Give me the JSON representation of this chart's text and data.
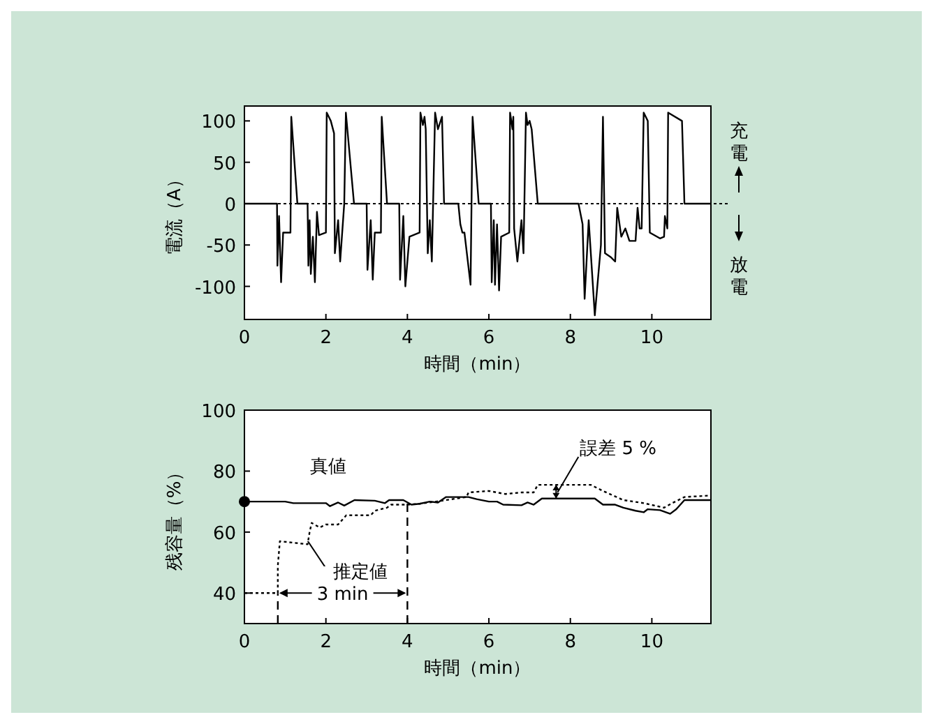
{
  "chart_data": [
    {
      "type": "line",
      "ylabel": "電流（A）",
      "xlabel": "時間（min）",
      "xlim": [
        0,
        11.45
      ],
      "ylim": [
        -140,
        118
      ],
      "xticks": [
        0,
        2,
        4,
        6,
        8,
        10
      ],
      "yticks": [
        -100,
        -50,
        0,
        50,
        100
      ],
      "grid": false,
      "ref_lines": [
        {
          "axis": "y",
          "value": 0,
          "line_style": "dotted",
          "color": "#000000"
        }
      ],
      "annotations": [
        "充電",
        "放電"
      ],
      "series": [
        {
          "color": "#000000",
          "line_style": "solid",
          "x": [
            0,
            0.8,
            0.81,
            0.85,
            0.9,
            0.95,
            1.13,
            1.15,
            1.3,
            1.55,
            1.57,
            1.6,
            1.63,
            1.68,
            1.73,
            1.78,
            1.83,
            2.0,
            2.02,
            2.12,
            2.2,
            2.22,
            2.3,
            2.35,
            2.45,
            2.49,
            2.69,
            3.0,
            3.02,
            3.1,
            3.15,
            3.2,
            3.35,
            3.37,
            3.5,
            3.8,
            3.82,
            3.9,
            3.95,
            4.05,
            4.3,
            4.32,
            4.38,
            4.42,
            4.45,
            4.5,
            4.55,
            4.6,
            4.68,
            4.75,
            4.85,
            4.9,
            5.25,
            5.3,
            5.35,
            5.4,
            5.55,
            5.6,
            5.75,
            6.05,
            6.07,
            6.12,
            6.15,
            6.2,
            6.25,
            6.3,
            6.5,
            6.52,
            6.58,
            6.6,
            6.62,
            6.7,
            6.8,
            6.85,
            6.91,
            6.95,
            7.0,
            7.05,
            7.2,
            8.2,
            8.3,
            8.35,
            8.45,
            8.6,
            8.75,
            8.8,
            8.85,
            9.0,
            9.1,
            9.15,
            9.25,
            9.35,
            9.45,
            9.6,
            9.65,
            9.7,
            9.75,
            9.8,
            9.9,
            9.95,
            10.2,
            10.3,
            10.32,
            10.38,
            10.4,
            10.74,
            10.8,
            11.45
          ],
          "values": [
            0,
            0,
            -75,
            -15,
            -95,
            -35,
            -35,
            105,
            0,
            0,
            -75,
            -20,
            -85,
            -40,
            -95,
            -10,
            -38,
            -35,
            110,
            100,
            85,
            -60,
            -20,
            -70,
            0,
            110,
            0,
            0,
            -80,
            -20,
            -92,
            -35,
            -35,
            105,
            0,
            0,
            -92,
            -15,
            -100,
            -40,
            -35,
            110,
            95,
            105,
            90,
            -60,
            -20,
            -70,
            110,
            90,
            105,
            0,
            0,
            -25,
            -35,
            -35,
            -98,
            105,
            0,
            0,
            -95,
            -20,
            -98,
            -25,
            -105,
            -40,
            -35,
            110,
            90,
            105,
            -30,
            -70,
            -20,
            -60,
            110,
            95,
            100,
            90,
            0,
            0,
            -25,
            -115,
            -20,
            -135,
            -50,
            105,
            -60,
            -65,
            -70,
            -5,
            -40,
            -30,
            -45,
            -45,
            -5,
            -30,
            -30,
            110,
            100,
            -35,
            -42,
            -40,
            -15,
            -30,
            110,
            100,
            0,
            0
          ]
        }
      ]
    },
    {
      "type": "line",
      "ylabel": "残容量（%）",
      "xlabel": "時間（min）",
      "xlim": [
        0,
        11.45
      ],
      "ylim": [
        30,
        100
      ],
      "xticks": [
        0,
        2,
        4,
        6,
        8,
        10
      ],
      "yticks": [
        40,
        60,
        80,
        100
      ],
      "grid": false,
      "annotations": [
        {
          "text": "3 min",
          "x": 4,
          "y": 40
        },
        {
          "text": "誤差 5 %",
          "x": 7.65,
          "y": 73
        }
      ],
      "series": [
        {
          "name": "真値",
          "color": "#000000",
          "line_style": "solid",
          "x": [
            0,
            1.0,
            1.2,
            2.0,
            2.1,
            2.3,
            2.45,
            2.7,
            3.2,
            3.45,
            3.55,
            3.9,
            4.1,
            4.3,
            4.55,
            4.75,
            4.95,
            5.5,
            5.7,
            6.0,
            6.2,
            6.35,
            6.8,
            6.95,
            7.1,
            7.3,
            8.6,
            8.8,
            9.1,
            9.3,
            9.6,
            9.8,
            9.9,
            10.2,
            10.45,
            10.6,
            10.8,
            11.45
          ],
          "values": [
            70,
            70,
            69.5,
            69.5,
            68.5,
            69.7,
            68.7,
            70.5,
            70.3,
            69.5,
            70.5,
            70.5,
            69,
            69.3,
            70,
            69.7,
            71.5,
            71.5,
            70.8,
            70,
            70,
            69,
            68.8,
            69.7,
            69,
            71,
            71,
            69,
            69,
            68,
            67,
            66.5,
            67.5,
            67.2,
            66,
            67.5,
            70.5,
            70.5
          ]
        },
        {
          "name": "推定値",
          "color": "#000000",
          "line_style": "dotted",
          "x": [
            0,
            0.82,
            0.82,
            0.87,
            1.55,
            1.6,
            1.65,
            1.85,
            2.0,
            2.3,
            2.5,
            3.1,
            3.2,
            3.5,
            3.6,
            4.0,
            4.3,
            4.7,
            5.45,
            5.5,
            6.0,
            6.4,
            6.8,
            7.1,
            7.2,
            8.5,
            8.8,
            9.3,
            9.8,
            10.3,
            10.5,
            10.8,
            11.45
          ],
          "values": [
            40,
            40,
            49,
            57,
            56,
            60,
            63,
            61.5,
            62.5,
            62.5,
            65.5,
            65.5,
            67,
            68,
            69,
            69,
            69.3,
            70,
            71.5,
            73,
            73.5,
            72.5,
            73,
            73,
            75.5,
            75.5,
            73.5,
            70.5,
            69.5,
            68,
            69.5,
            71.5,
            72
          ]
        },
        {
          "type": "scatter",
          "marker": "circle",
          "color": "#000000",
          "x": [
            0
          ],
          "values": [
            70
          ]
        },
        {
          "color": "#000000",
          "line_style": "dashed",
          "x": [
            0.82,
            0.82
          ],
          "values": [
            30,
            40
          ]
        },
        {
          "color": "#000000",
          "line_style": "dashed",
          "x": [
            4,
            4
          ],
          "values": [
            30,
            69.5
          ]
        }
      ]
    }
  ]
}
